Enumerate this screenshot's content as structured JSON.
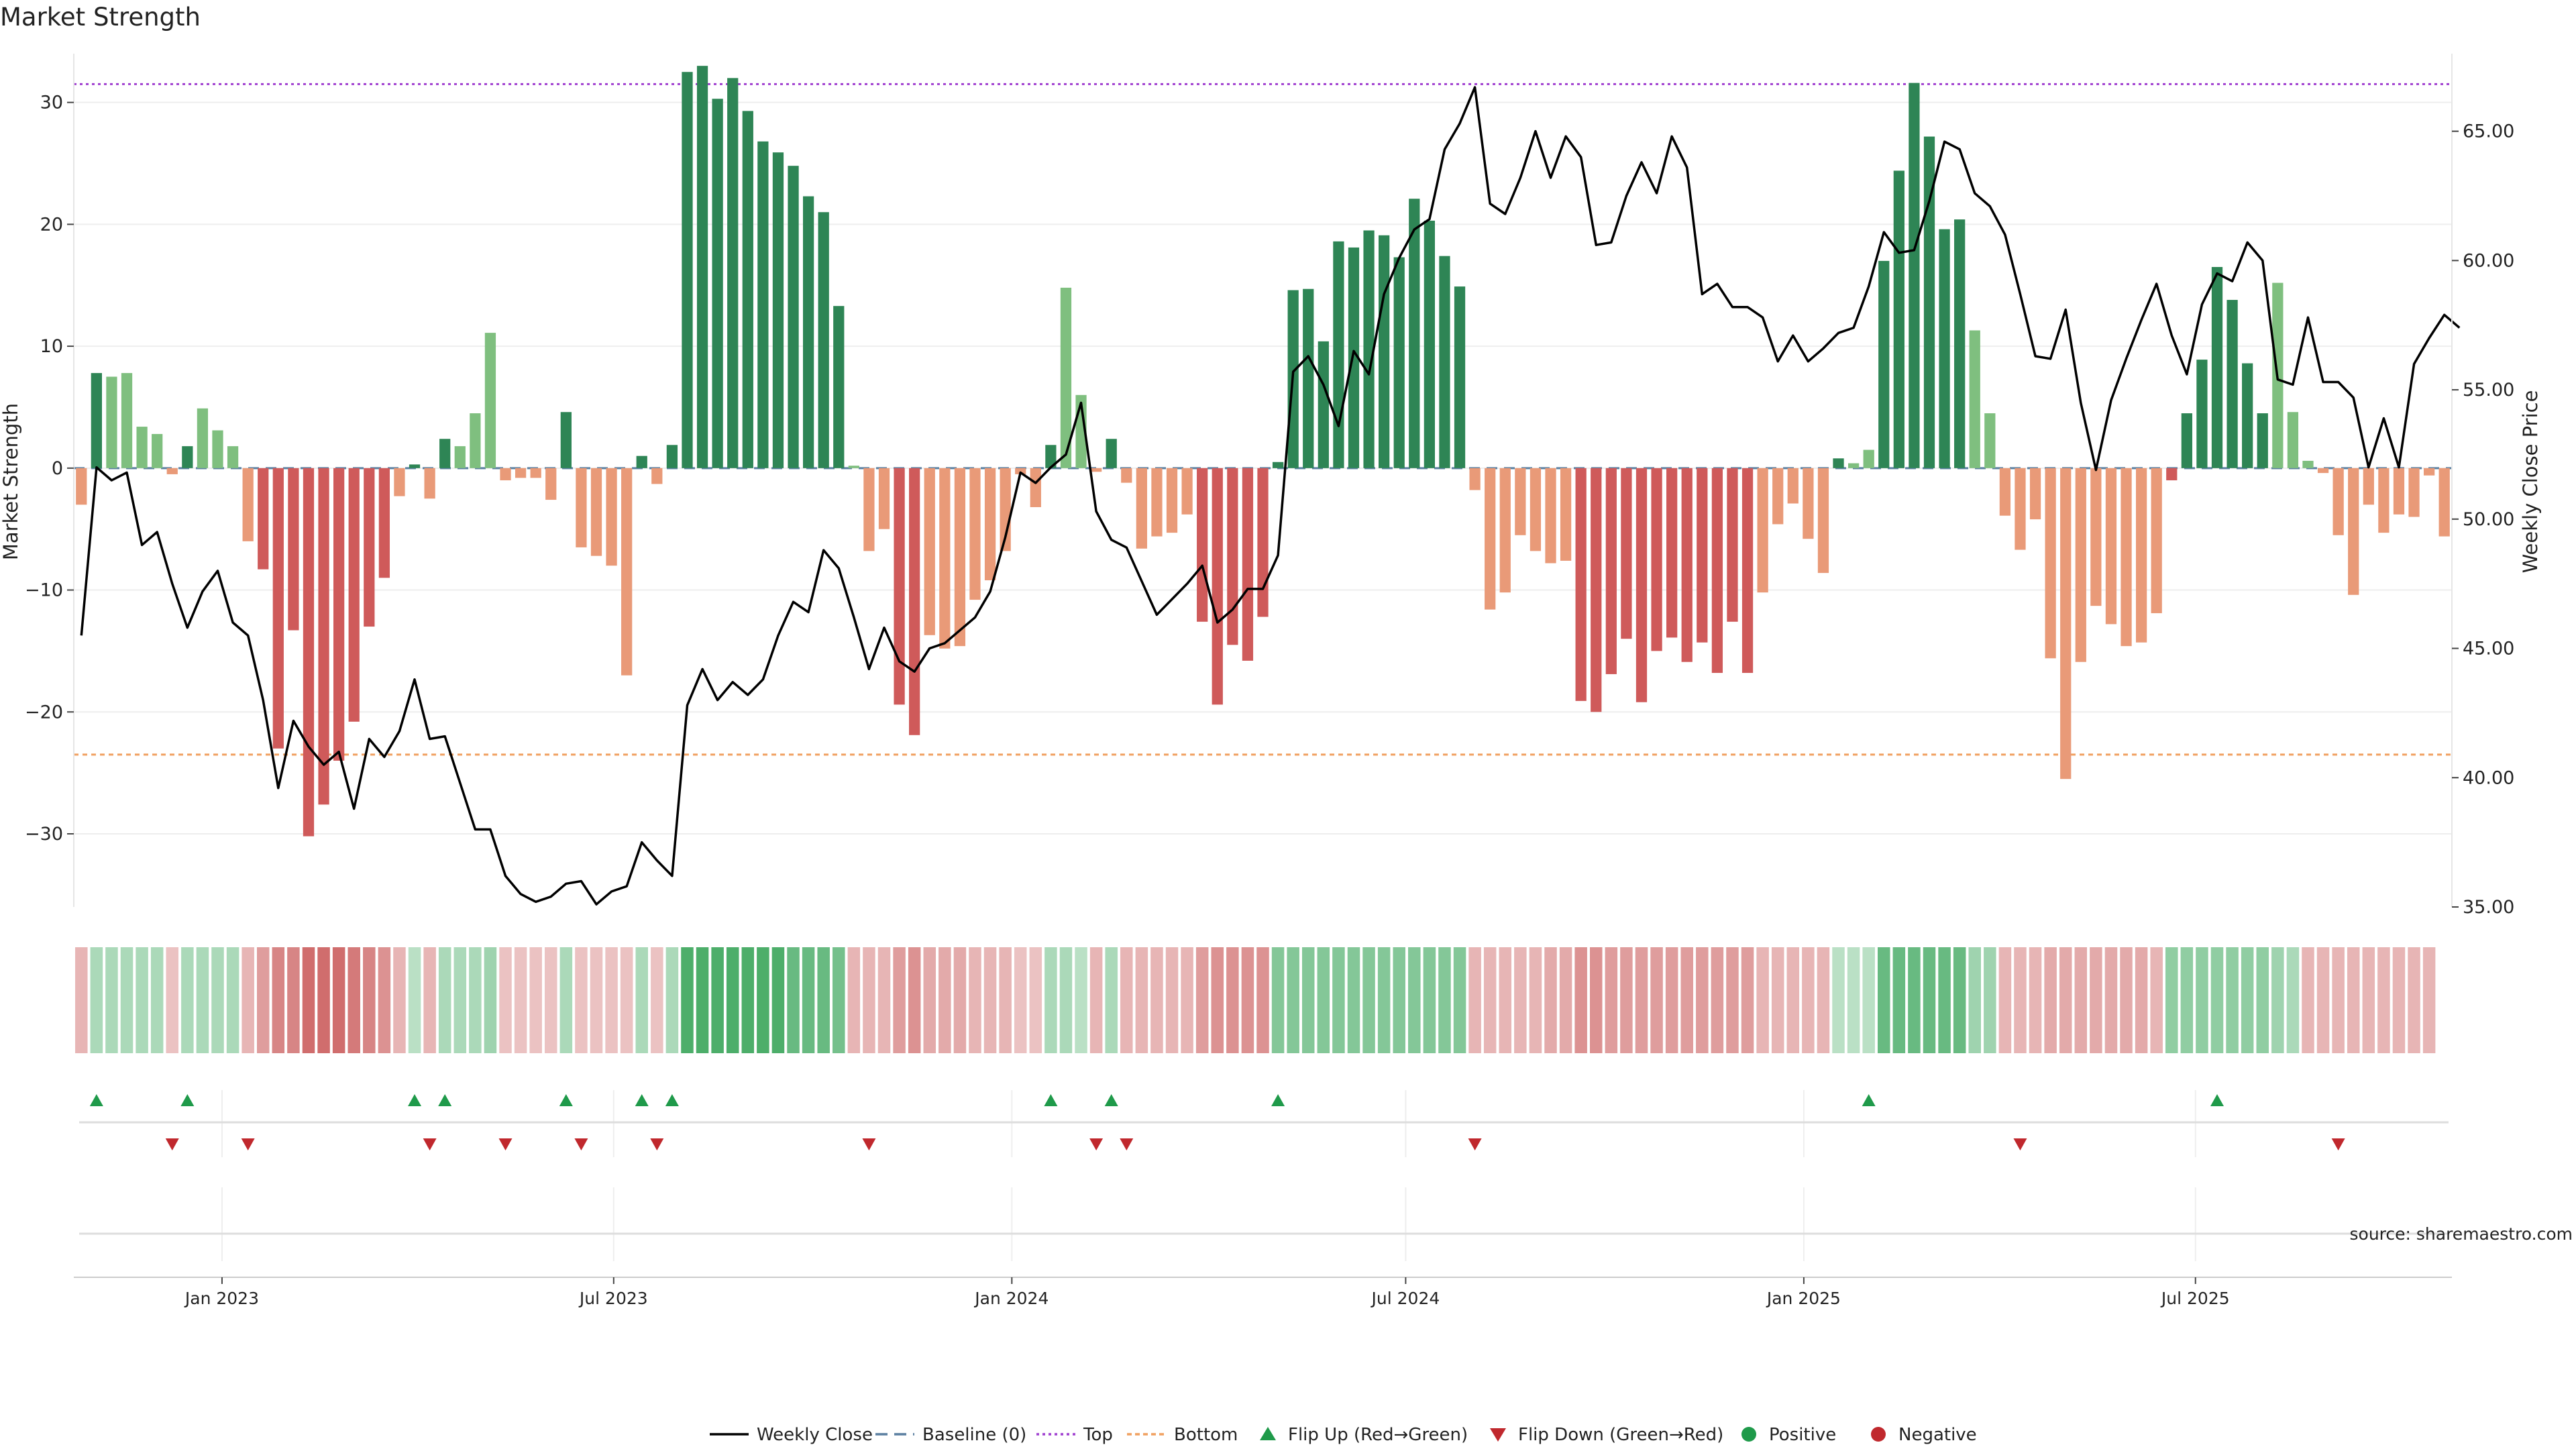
{
  "title": "Market Strength",
  "source_text": "source: sharemaestro.com",
  "colors": {
    "pos_dark": "#2e8555",
    "pos_light": "#7fbf7f",
    "neg_dark": "#cf5a5a",
    "neg_light": "#e99a78",
    "price": "#000000",
    "baseline": "#5a7fa0",
    "top": "#a040d0",
    "bottom": "#f0a060",
    "flip_up": "#1f9a4a",
    "flip_down": "#c0282d"
  },
  "chart_data": {
    "type": "bar",
    "title": "Market Strength",
    "ylabel": "Market Strength",
    "y2label": "Weekly Close Price",
    "ylim": [
      -36,
      34
    ],
    "y2lim": [
      35,
      68
    ],
    "yticks": [
      -30,
      -20,
      -10,
      0,
      10,
      20,
      30
    ],
    "y2ticks": [
      35,
      40,
      45,
      50,
      55,
      60,
      65
    ],
    "y2tick_labels": [
      "35.00",
      "40.00",
      "45.00",
      "50.00",
      "55.00",
      "60.00",
      "65.00"
    ],
    "top_line": 31.5,
    "bottom_line": -23.5,
    "baseline": 0,
    "start_date": "2022-10-28",
    "x_tick_labels": [
      "Jan 2023",
      "Jul 2023",
      "Jan 2024",
      "Jul 2024",
      "Jan 2025",
      "Jul 2025"
    ],
    "x_tick_dates": [
      "2023-01-01",
      "2023-07-01",
      "2024-01-01",
      "2024-07-01",
      "2025-01-01",
      "2025-07-01"
    ],
    "strength": [
      -3,
      7.8,
      7.5,
      7.8,
      3.4,
      2.8,
      -0.5,
      1.8,
      4.9,
      3.1,
      1.8,
      -6,
      -8.3,
      -23,
      -13.3,
      -30.2,
      -27.6,
      -24,
      -20.8,
      -13,
      -9,
      -2.3,
      0.3,
      -2.5,
      2.4,
      1.8,
      4.5,
      11.1,
      -1,
      -0.8,
      -0.8,
      -2.6,
      4.6,
      -6.5,
      -7.2,
      -8,
      -17,
      1,
      -1.3,
      1.9,
      32.5,
      33,
      30.3,
      32,
      29.3,
      26.8,
      25.9,
      24.8,
      22.3,
      21,
      13.3,
      0.2,
      -6.8,
      -5,
      -19.4,
      -21.9,
      -13.7,
      -14.8,
      -14.6,
      -10.8,
      -9.2,
      -6.8,
      -0.5,
      -3.2,
      1.9,
      14.8,
      6,
      -0.3,
      2.4,
      -1.2,
      -6.6,
      -5.6,
      -5.3,
      -3.8,
      -12.6,
      -19.4,
      -14.5,
      -15.8,
      -12.2,
      0.5,
      14.6,
      14.7,
      10.4,
      18.6,
      18.1,
      19.5,
      19.1,
      17.3,
      22.1,
      20.3,
      17.4,
      14.9,
      -1.8,
      -11.6,
      -10.2,
      -5.5,
      -6.8,
      -7.8,
      -7.6,
      -19.1,
      -20,
      -16.9,
      -14,
      -19.2,
      -15,
      -13.9,
      -15.9,
      -14.3,
      -16.8,
      -12.6,
      -16.8,
      -10.2,
      -4.6,
      -2.9,
      -5.8,
      -8.6,
      0.8,
      0.4,
      1.5,
      17,
      24.4,
      31.6,
      27.2,
      19.6,
      20.4,
      11.3,
      4.5,
      -3.9,
      -6.7,
      -4.2,
      -15.6,
      -25.5,
      -15.9,
      -11.3,
      -12.8,
      -14.6,
      -14.3,
      -11.9,
      -1,
      4.5,
      8.9,
      16.5,
      13.8,
      8.6,
      4.5,
      15.2,
      4.6,
      0.6,
      -0.4,
      -5.5,
      -10.4,
      -3,
      -5.3,
      -3.8,
      -4,
      -0.6,
      -5.6
    ],
    "price": [
      45.5,
      52,
      51.5,
      51.8,
      49,
      49.5,
      47.5,
      45.8,
      47.2,
      48,
      46,
      45.5,
      43,
      39.6,
      42.2,
      41.2,
      40.5,
      41,
      38.8,
      41.5,
      40.8,
      41.8,
      43.8,
      41.5,
      41.6,
      39.8,
      38,
      38,
      36.2,
      35.5,
      35.2,
      35.4,
      35.9,
      36,
      35.1,
      35.6,
      35.8,
      37.5,
      36.8,
      36.2,
      42.8,
      44.2,
      43,
      43.7,
      43.2,
      43.8,
      45.5,
      46.8,
      46.4,
      48.8,
      48.1,
      46.2,
      44.2,
      45.8,
      44.5,
      44.1,
      45,
      45.2,
      45.7,
      46.2,
      47.2,
      49.3,
      51.8,
      51.4,
      52,
      52.5,
      54.5,
      50.3,
      49.2,
      48.9,
      47.6,
      46.3,
      46.9,
      47.5,
      48.2,
      46,
      46.5,
      47.3,
      47.3,
      48.6,
      55.7,
      56.3,
      55.2,
      53.6,
      56.5,
      55.6,
      58.7,
      60.1,
      61.2,
      61.6,
      64.3,
      65.3,
      66.7,
      62.2,
      61.8,
      63.2,
      65,
      63.2,
      64.8,
      64,
      60.6,
      60.7,
      62.5,
      63.8,
      62.6,
      64.8,
      63.6,
      58.7,
      59.1,
      58.2,
      58.2,
      57.8,
      56.1,
      57.1,
      56.1,
      56.6,
      57.2,
      57.4,
      59,
      61.1,
      60.3,
      60.4,
      62.3,
      64.6,
      64.3,
      62.6,
      62.1,
      61,
      58.7,
      56.3,
      56.2,
      58.1,
      54.5,
      51.9,
      54.6,
      56.2,
      57.7,
      59.1,
      57.1,
      55.6,
      58.3,
      59.5,
      59.2,
      60.7,
      60,
      55.4,
      55.2,
      57.8,
      55.3,
      55.3,
      54.7,
      52,
      53.9,
      52,
      56,
      57,
      57.9,
      57.4
    ],
    "signal": [
      -0.3,
      0.3,
      0.3,
      0.3,
      0.3,
      0.3,
      -0.2,
      0.3,
      0.3,
      0.3,
      0.3,
      -0.3,
      -0.5,
      -0.7,
      -0.7,
      -0.9,
      -0.9,
      -0.9,
      -0.8,
      -0.7,
      -0.6,
      -0.3,
      0.2,
      -0.3,
      0.3,
      0.3,
      0.3,
      0.4,
      -0.2,
      -0.2,
      -0.2,
      -0.2,
      0.3,
      -0.2,
      -0.2,
      -0.2,
      -0.2,
      0.3,
      -0.2,
      0.3,
      1.0,
      1.0,
      1.0,
      1.0,
      1.0,
      1.0,
      1.0,
      0.8,
      0.8,
      0.8,
      0.7,
      -0.3,
      -0.3,
      -0.3,
      -0.5,
      -0.6,
      -0.4,
      -0.4,
      -0.4,
      -0.3,
      -0.3,
      -0.3,
      -0.2,
      -0.2,
      0.3,
      0.3,
      0.2,
      -0.3,
      0.3,
      -0.3,
      -0.3,
      -0.3,
      -0.3,
      -0.3,
      -0.5,
      -0.6,
      -0.6,
      -0.6,
      -0.6,
      0.6,
      0.6,
      0.6,
      0.6,
      0.6,
      0.6,
      0.6,
      0.6,
      0.6,
      0.6,
      0.6,
      0.6,
      0.6,
      -0.3,
      -0.3,
      -0.3,
      -0.3,
      -0.3,
      -0.4,
      -0.4,
      -0.6,
      -0.6,
      -0.5,
      -0.5,
      -0.5,
      -0.5,
      -0.5,
      -0.5,
      -0.5,
      -0.5,
      -0.5,
      -0.5,
      -0.3,
      -0.3,
      -0.3,
      -0.3,
      -0.3,
      0.2,
      0.2,
      0.2,
      0.8,
      0.8,
      0.8,
      0.8,
      0.8,
      0.8,
      0.4,
      0.4,
      -0.3,
      -0.3,
      -0.3,
      -0.4,
      -0.4,
      -0.4,
      -0.4,
      -0.4,
      -0.4,
      -0.4,
      -0.3,
      0.5,
      0.5,
      0.5,
      0.5,
      0.5,
      0.5,
      0.5,
      0.4,
      0.3,
      -0.3,
      -0.3,
      -0.3,
      -0.3,
      -0.3,
      -0.3,
      -0.3,
      -0.3,
      -0.3
    ],
    "flip_up_weeks": [
      1,
      7,
      22,
      24,
      32,
      37,
      39,
      64,
      68,
      79,
      118,
      141
    ],
    "flip_down_weeks": [
      6,
      11,
      23,
      28,
      33,
      38,
      52,
      67,
      69,
      92,
      128,
      149
    ],
    "legend": [
      "Weekly Close",
      "Baseline (0)",
      "Top",
      "Bottom",
      "Flip Up (Red→Green)",
      "Flip Down (Green→Red)",
      "Positive",
      "Negative"
    ]
  }
}
